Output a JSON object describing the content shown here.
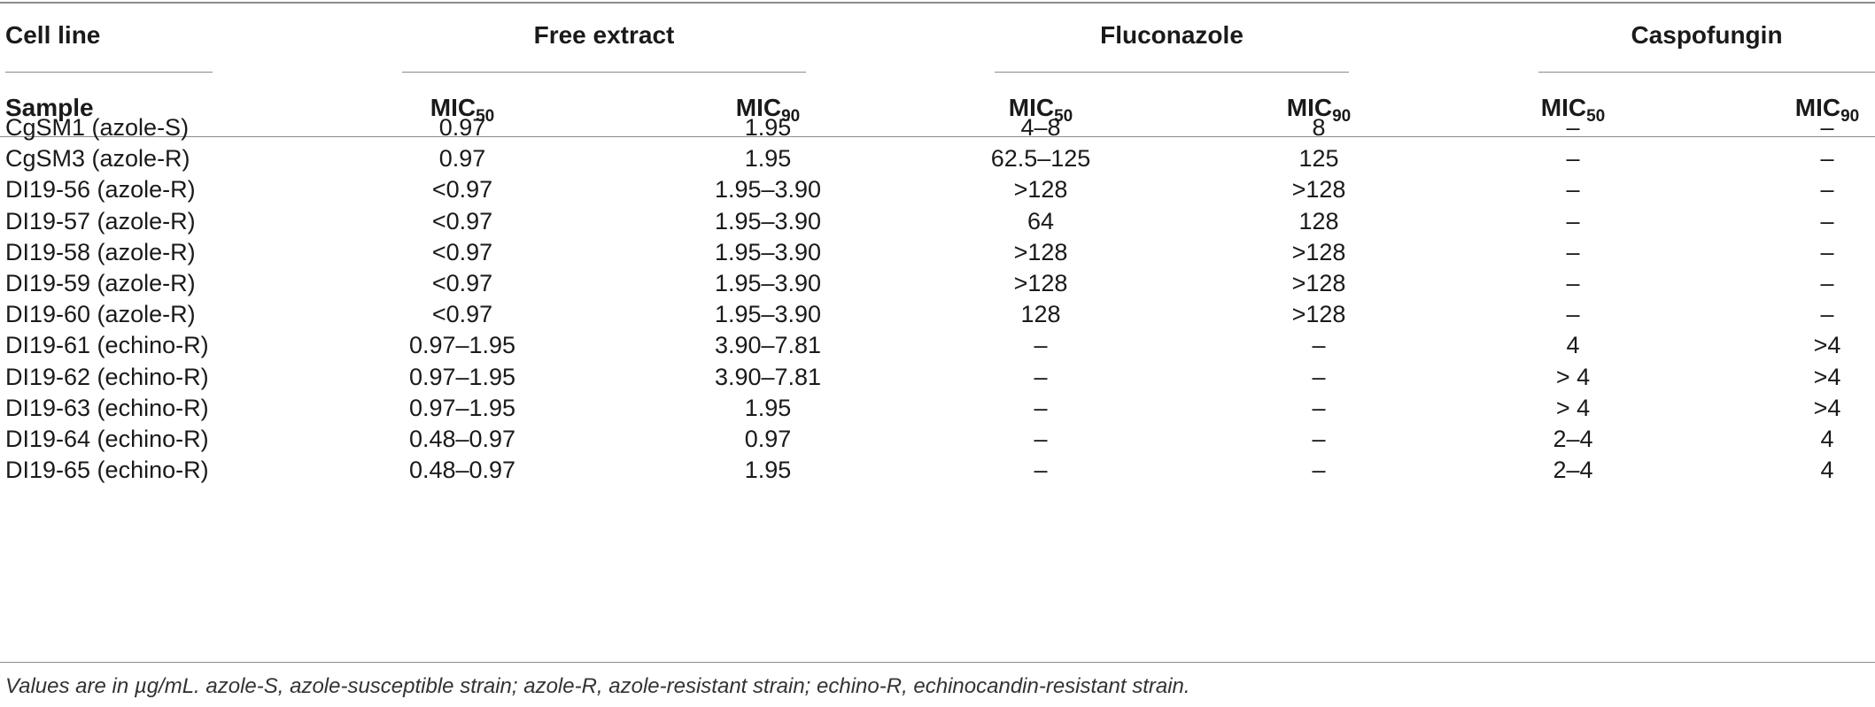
{
  "table": {
    "header_row1": {
      "cell_line": "Cell line",
      "groups": [
        "Free extract",
        "Fluconazole",
        "Caspofungin"
      ]
    },
    "header_row2": {
      "sample": "Sample",
      "mic_prefix": "MIC",
      "columns": [
        {
          "sub": "50"
        },
        {
          "sub": "90"
        },
        {
          "sub": "50"
        },
        {
          "sub": "90"
        },
        {
          "sub": "50"
        },
        {
          "sub": "90"
        }
      ]
    },
    "rows": [
      {
        "sample": "CgSM1 (azole-S)",
        "values": [
          "0.97",
          "1.95",
          "4–8",
          "8",
          "–",
          "–"
        ]
      },
      {
        "sample": "CgSM3 (azole-R)",
        "values": [
          "0.97",
          "1.95",
          "62.5–125",
          "125",
          "–",
          "–"
        ]
      },
      {
        "sample": "DI19-56 (azole-R)",
        "values": [
          "<0.97",
          "1.95–3.90",
          ">128",
          ">128",
          "–",
          "–"
        ]
      },
      {
        "sample": "DI19-57 (azole-R)",
        "values": [
          "<0.97",
          "1.95–3.90",
          "64",
          "128",
          "–",
          "–"
        ]
      },
      {
        "sample": "DI19-58 (azole-R)",
        "values": [
          "<0.97",
          "1.95–3.90",
          ">128",
          ">128",
          "–",
          "–"
        ]
      },
      {
        "sample": "DI19-59 (azole-R)",
        "values": [
          "<0.97",
          "1.95–3.90",
          ">128",
          ">128",
          "–",
          "–"
        ]
      },
      {
        "sample": "DI19-60 (azole-R)",
        "values": [
          "<0.97",
          "1.95–3.90",
          "128",
          ">128",
          "–",
          "–"
        ]
      },
      {
        "sample": "DI19-61 (echino-R)",
        "values": [
          "0.97–1.95",
          "3.90–7.81",
          "–",
          "–",
          "4",
          ">4"
        ]
      },
      {
        "sample": "DI19-62 (echino-R)",
        "values": [
          "0.97–1.95",
          "3.90–7.81",
          "–",
          "–",
          "> 4",
          ">4"
        ]
      },
      {
        "sample": "DI19-63 (echino-R)",
        "values": [
          "0.97–1.95",
          "1.95",
          "–",
          "–",
          "> 4",
          ">4"
        ]
      },
      {
        "sample": "DI19-64 (echino-R)",
        "values": [
          "0.48–0.97",
          "0.97",
          "–",
          "–",
          "2–4",
          "4"
        ]
      },
      {
        "sample": "DI19-65 (echino-R)",
        "values": [
          "0.48–0.97",
          "1.95",
          "–",
          "–",
          "2–4",
          "4"
        ]
      }
    ],
    "footnote": "Values are in µg/mL. azole-S, azole-susceptible strain; azole-R, azole-resistant strain; echino-R, echinocandin-resistant strain."
  }
}
